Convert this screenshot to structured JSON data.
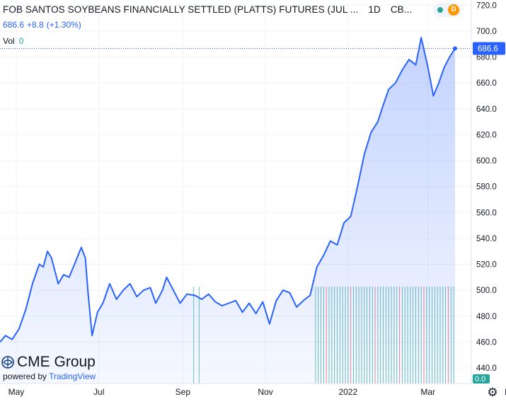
{
  "header": {
    "title": "FOB SANTOS SOYBEANS FINANCIALLY SETTLED (PLATTS) FUTURES (JUL ...",
    "interval": "1D",
    "exchange": "CB..."
  },
  "quote": {
    "last": "686.6",
    "change": "+8.8",
    "change_pct": "(+1.30%)"
  },
  "volume": {
    "label": "Vol",
    "value": "0"
  },
  "badges": {
    "market_status_color": "#26a69a",
    "delay_letter": "D"
  },
  "branding": {
    "name": "CME Group",
    "powered_prefix": "powered by",
    "powered_name": "TradingView"
  },
  "colors": {
    "line": "#2962ff",
    "area": "#2962ff",
    "volume": "#26a69a",
    "volume_down": "#ef5350"
  },
  "chart_data": {
    "type": "area",
    "x_start": "2021-04-19",
    "x_end": "2022-03-21",
    "ylim": [
      428,
      724
    ],
    "y_ticks": [
      440,
      460,
      480,
      500,
      520,
      540,
      560,
      580,
      600,
      620,
      640,
      660,
      680,
      700,
      720
    ],
    "x_ticks": [
      {
        "label": "Mar",
        "date": "2021-03-01"
      },
      {
        "label": "May",
        "date": "2021-05-01"
      },
      {
        "label": "Jul",
        "date": "2021-07-01"
      },
      {
        "label": "Sep",
        "date": "2021-09-01"
      },
      {
        "label": "Nov",
        "date": "2021-11-01"
      },
      {
        "label": "2022",
        "date": "2022-01-01"
      },
      {
        "label": "Mar",
        "date": "2022-03-01"
      },
      {
        "label": "Ma",
        "date": "2022-05-01"
      }
    ],
    "last_value": 686.6,
    "last_label": "686.6",
    "volume_value": 0,
    "volume_label": "0.0",
    "points": [
      {
        "x": "2021-04-19",
        "y": 460
      },
      {
        "x": "2021-04-23",
        "y": 465
      },
      {
        "x": "2021-04-28",
        "y": 462
      },
      {
        "x": "2021-05-03",
        "y": 470
      },
      {
        "x": "2021-05-08",
        "y": 485
      },
      {
        "x": "2021-05-13",
        "y": 505
      },
      {
        "x": "2021-05-18",
        "y": 520
      },
      {
        "x": "2021-05-21",
        "y": 518
      },
      {
        "x": "2021-05-24",
        "y": 530
      },
      {
        "x": "2021-05-27",
        "y": 525
      },
      {
        "x": "2021-06-01",
        "y": 505
      },
      {
        "x": "2021-06-05",
        "y": 512
      },
      {
        "x": "2021-06-09",
        "y": 510
      },
      {
        "x": "2021-06-13",
        "y": 520
      },
      {
        "x": "2021-06-18",
        "y": 533
      },
      {
        "x": "2021-06-21",
        "y": 525
      },
      {
        "x": "2021-06-23",
        "y": 498
      },
      {
        "x": "2021-06-26",
        "y": 465
      },
      {
        "x": "2021-06-30",
        "y": 483
      },
      {
        "x": "2021-07-04",
        "y": 490
      },
      {
        "x": "2021-07-09",
        "y": 505
      },
      {
        "x": "2021-07-14",
        "y": 493
      },
      {
        "x": "2021-07-19",
        "y": 500
      },
      {
        "x": "2021-07-24",
        "y": 505
      },
      {
        "x": "2021-07-29",
        "y": 495
      },
      {
        "x": "2021-08-03",
        "y": 500
      },
      {
        "x": "2021-08-08",
        "y": 502
      },
      {
        "x": "2021-08-12",
        "y": 490
      },
      {
        "x": "2021-08-17",
        "y": 500
      },
      {
        "x": "2021-08-20",
        "y": 510
      },
      {
        "x": "2021-08-25",
        "y": 500
      },
      {
        "x": "2021-08-30",
        "y": 490
      },
      {
        "x": "2021-09-04",
        "y": 497
      },
      {
        "x": "2021-09-10",
        "y": 496
      },
      {
        "x": "2021-09-15",
        "y": 493
      },
      {
        "x": "2021-09-20",
        "y": 497
      },
      {
        "x": "2021-09-25",
        "y": 491
      },
      {
        "x": "2021-09-30",
        "y": 488
      },
      {
        "x": "2021-10-05",
        "y": 490
      },
      {
        "x": "2021-10-10",
        "y": 492
      },
      {
        "x": "2021-10-15",
        "y": 483
      },
      {
        "x": "2021-10-20",
        "y": 490
      },
      {
        "x": "2021-10-25",
        "y": 482
      },
      {
        "x": "2021-10-30",
        "y": 491
      },
      {
        "x": "2021-11-04",
        "y": 474
      },
      {
        "x": "2021-11-09",
        "y": 492
      },
      {
        "x": "2021-11-14",
        "y": 500
      },
      {
        "x": "2021-11-19",
        "y": 498
      },
      {
        "x": "2021-11-24",
        "y": 487
      },
      {
        "x": "2021-11-29",
        "y": 492
      },
      {
        "x": "2021-12-04",
        "y": 496
      },
      {
        "x": "2021-12-09",
        "y": 518
      },
      {
        "x": "2021-12-14",
        "y": 527
      },
      {
        "x": "2021-12-19",
        "y": 538
      },
      {
        "x": "2021-12-24",
        "y": 535
      },
      {
        "x": "2021-12-29",
        "y": 552
      },
      {
        "x": "2022-01-03",
        "y": 557
      },
      {
        "x": "2022-01-08",
        "y": 580
      },
      {
        "x": "2022-01-13",
        "y": 605
      },
      {
        "x": "2022-01-18",
        "y": 622
      },
      {
        "x": "2022-01-23",
        "y": 630
      },
      {
        "x": "2022-01-26",
        "y": 640
      },
      {
        "x": "2022-01-31",
        "y": 655
      },
      {
        "x": "2022-02-05",
        "y": 660
      },
      {
        "x": "2022-02-10",
        "y": 670
      },
      {
        "x": "2022-02-15",
        "y": 678
      },
      {
        "x": "2022-02-20",
        "y": 674
      },
      {
        "x": "2022-02-24",
        "y": 695
      },
      {
        "x": "2022-03-01",
        "y": 672
      },
      {
        "x": "2022-03-05",
        "y": 650
      },
      {
        "x": "2022-03-09",
        "y": 660
      },
      {
        "x": "2022-03-13",
        "y": 672
      },
      {
        "x": "2022-03-17",
        "y": 680
      },
      {
        "x": "2022-03-21",
        "y": 686.6
      }
    ]
  }
}
